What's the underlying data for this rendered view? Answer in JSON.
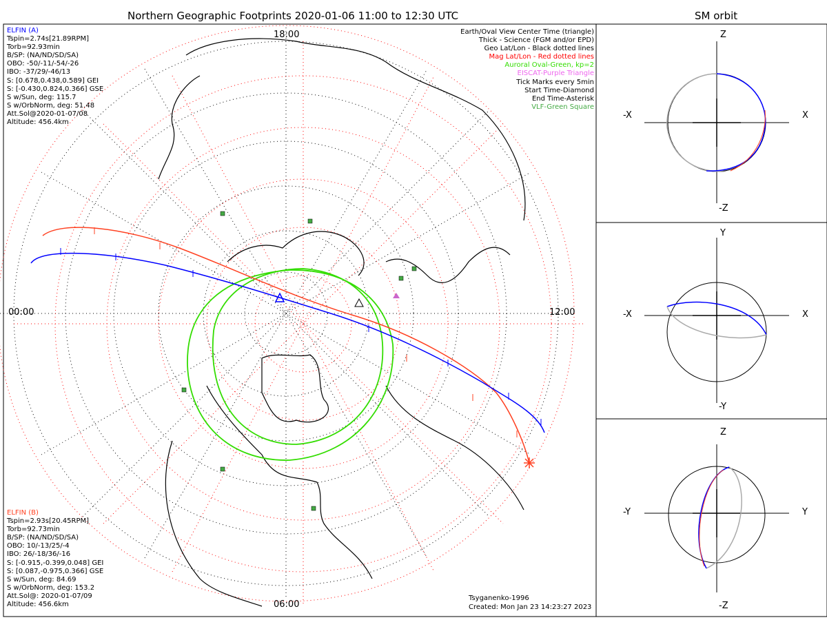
{
  "main_title": "Northern Geographic Footprints 2020-01-06 11:00 to 12:30 UTC",
  "orbit_title": "SM orbit",
  "clock_labels": {
    "top": "18:00",
    "left": "00:00",
    "right": "12:00",
    "bottom": "06:00"
  },
  "elfin_a": {
    "name": "ELFIN (A)",
    "lines": [
      "Tspin=2.74s[21.89RPM]",
      "Torb=92.93min",
      "B/SP: (NA/ND/SD/SA)",
      "OBO: -50/-11/-54/-26",
      "IBO: -37/29/-46/13",
      "S: [0.678,0.438,0.589] GEI",
      "S: [-0.430,0.824,0.366] GSE",
      "S w/Sun, deg: 115.7",
      "S w/OrbNorm, deg: 51.48",
      "Att.Sol@2020-01-07/08",
      "Altitude: 456.4km"
    ],
    "color": "#0000ff"
  },
  "elfin_b": {
    "name": "ELFIN (B)",
    "lines": [
      "Tspin=2.93s[20.45RPM]",
      "Torb=92.73min",
      "B/SP: (NA/ND/SD/SA)",
      "OBO: 10/-13/25/-4",
      "IBO: 26/-18/36/-16",
      "S: [-0.915,-0.399,0.048] GEI",
      "S: [0.087,-0.975,0.366] GSE",
      "S w/Sun, deg: 84.69",
      "S w/OrbNorm, deg: 153.2",
      "Att.Sol@: 2020-01-07/09",
      "Altitude: 456.6km"
    ],
    "color": "#ff4020"
  },
  "legend": [
    {
      "text": "Earth/Oval View Center Time (triangle)",
      "color": "#000000"
    },
    {
      "text": "Thick - Science (FGM and/or EPD)",
      "color": "#000000"
    },
    {
      "text": "Geo Lat/Lon - Black dotted lines",
      "color": "#000000"
    },
    {
      "text": "Mag Lat/Lon - Red dotted lines",
      "color": "#ff0000"
    },
    {
      "text": "Auroral Oval-Green, kp=2",
      "color": "#33dd00"
    },
    {
      "text": "EISCAT-Purple Triangle",
      "color": "#ee66ee"
    },
    {
      "text": "Tick Marks every 5min",
      "color": "#000000"
    },
    {
      "text": "Start Time-Diamond",
      "color": "#000000"
    },
    {
      "text": "End Time-Asterisk",
      "color": "#000000"
    },
    {
      "text": "VLF-Green Square",
      "color": "#44aa44"
    }
  ],
  "footer": {
    "model": "Tsyganenko-1996",
    "created": "Created: Mon Jan 23 14:23:27 2023"
  },
  "orbit_panels": [
    {
      "top": "Z",
      "bottom": "-Z",
      "left": "-X",
      "right": "X"
    },
    {
      "top": "Y",
      "bottom": "-Y",
      "left": "-X",
      "right": "X"
    },
    {
      "top": "Z",
      "bottom": "-Z",
      "left": "-Y",
      "right": "Y"
    }
  ]
}
